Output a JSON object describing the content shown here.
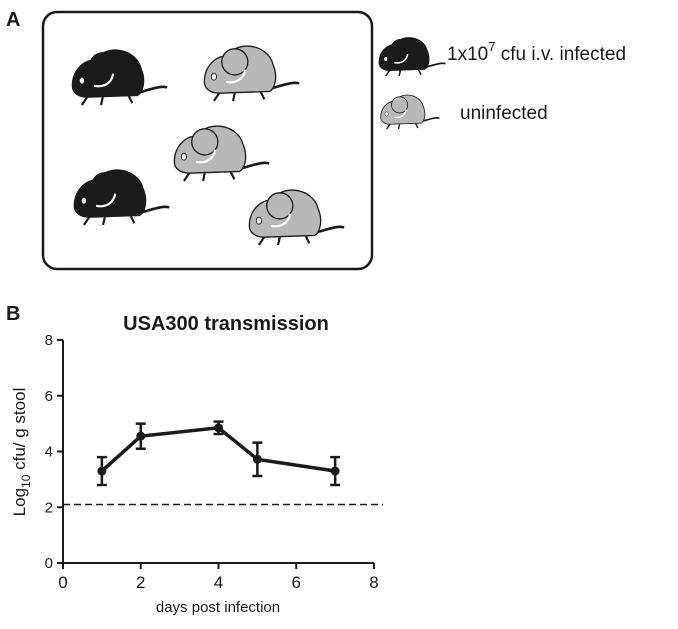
{
  "panel_labels": [
    "A",
    "B"
  ],
  "legend": [
    {
      "base": "1x10",
      "sup": "7",
      "rest": " cfu i.v. infected"
    },
    {
      "base": "uninfected"
    }
  ],
  "chart_data": {
    "type": "line",
    "title": "USA300 transmission",
    "xlabel": "days post infection",
    "ylabel": {
      "base": "Log",
      "sub": "10",
      "rest": " cfu/ g stool"
    },
    "x": [
      1,
      2,
      4,
      5,
      7
    ],
    "series": [
      {
        "color": "#1a1a1a",
        "values": [
          3.3,
          4.55,
          4.85,
          3.72,
          3.3
        ],
        "errors": [
          0.5,
          0.45,
          0.22,
          0.6,
          0.5
        ]
      }
    ],
    "reference_line": 2.1,
    "xlim": [
      0,
      8
    ],
    "ylim": [
      0,
      8
    ],
    "xticks": [
      0,
      2,
      4,
      6,
      8
    ],
    "yticks": [
      0,
      2,
      4,
      6,
      8
    ]
  }
}
